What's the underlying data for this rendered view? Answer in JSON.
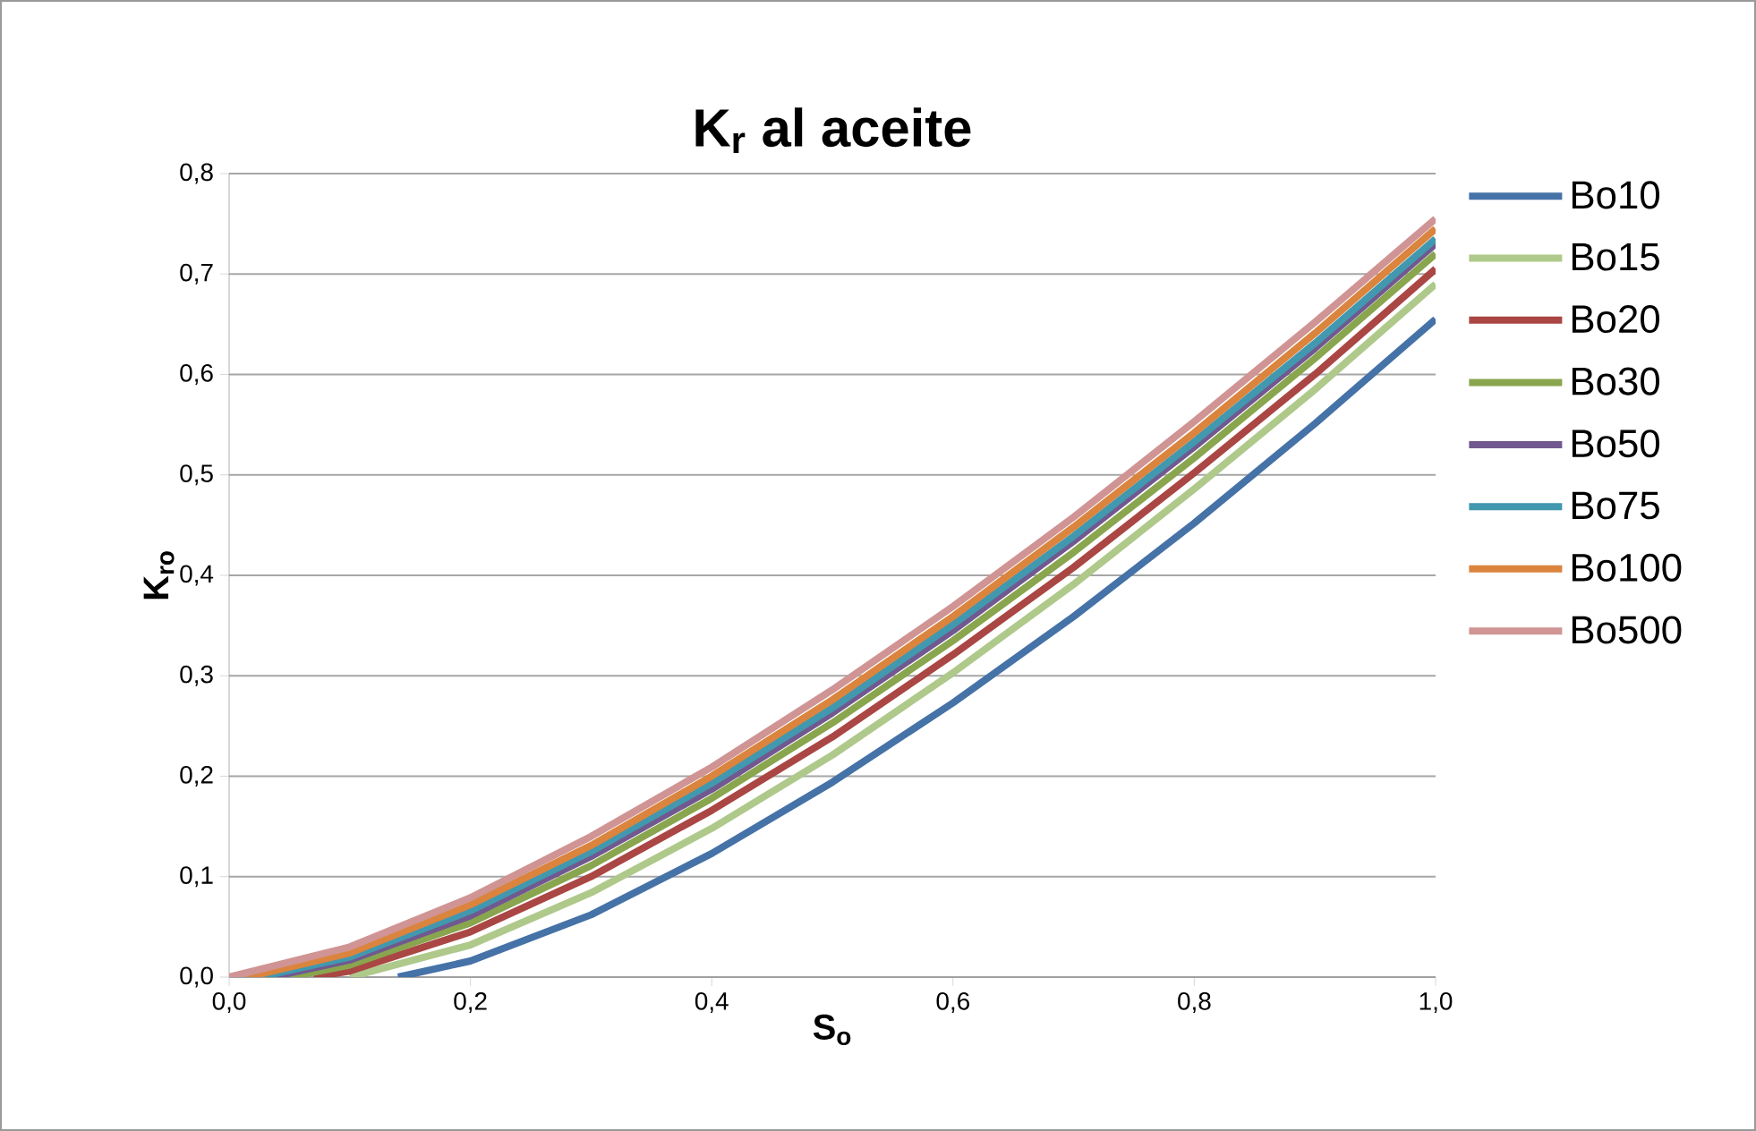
{
  "chart_data": {
    "type": "line",
    "title": "K$_{r}$ al aceite",
    "xlabel": "S$_{o}$",
    "ylabel": "K$_{ro}$",
    "xlim": [
      0,
      1
    ],
    "ylim": [
      0,
      0.8
    ],
    "xticks": [
      {
        "value": 0,
        "label": "0,0"
      },
      {
        "value": 0.2,
        "label": "0,2"
      },
      {
        "value": 0.4,
        "label": "0,4"
      },
      {
        "value": 0.6,
        "label": "0,6"
      },
      {
        "value": 0.8,
        "label": "0,8"
      },
      {
        "value": 1,
        "label": "1,0"
      }
    ],
    "yticks": [
      {
        "value": 0,
        "label": "0,0"
      },
      {
        "value": 0.1,
        "label": "0,1"
      },
      {
        "value": 0.2,
        "label": "0,2"
      },
      {
        "value": 0.3,
        "label": "0,3"
      },
      {
        "value": 0.4,
        "label": "0,4"
      },
      {
        "value": 0.5,
        "label": "0,5"
      },
      {
        "value": 0.6,
        "label": "0,6"
      },
      {
        "value": 0.7,
        "label": "0,7"
      },
      {
        "value": 0.8,
        "label": "0,8"
      }
    ],
    "grid": "y",
    "legend": "right",
    "marker": "none",
    "line_style": "solid",
    "series": [
      {
        "name": "Bo10",
        "color": "#4572a7",
        "x": [
          0.14,
          0.2,
          0.3,
          0.4,
          0.5,
          0.6,
          0.7,
          0.8,
          0.9,
          1.0
        ],
        "values": [
          0,
          0.016,
          0.062,
          0.123,
          0.194,
          0.273,
          0.359,
          0.452,
          0.551,
          0.655
        ]
      },
      {
        "name": "Bo15",
        "color": "#aec98a",
        "x": [
          0.1,
          0.2,
          0.3,
          0.4,
          0.5,
          0.6,
          0.7,
          0.8,
          0.9,
          1.0
        ],
        "values": [
          0,
          0.032,
          0.084,
          0.148,
          0.221,
          0.303,
          0.391,
          0.486,
          0.585,
          0.69
        ]
      },
      {
        "name": "Bo20",
        "color": "#aa4643",
        "x": [
          0.07,
          0.1,
          0.2,
          0.3,
          0.4,
          0.5,
          0.6,
          0.7,
          0.8,
          0.9,
          1.0
        ],
        "values": [
          0,
          0.006,
          0.045,
          0.1,
          0.166,
          0.239,
          0.321,
          0.408,
          0.502,
          0.6,
          0.705
        ]
      },
      {
        "name": "Bo30",
        "color": "#89a54e",
        "x": [
          0.05,
          0.1,
          0.2,
          0.3,
          0.4,
          0.5,
          0.6,
          0.7,
          0.8,
          0.9,
          1.0
        ],
        "values": [
          0,
          0.012,
          0.054,
          0.111,
          0.178,
          0.253,
          0.335,
          0.423,
          0.517,
          0.616,
          0.72
        ]
      },
      {
        "name": "Bo50",
        "color": "#71588f",
        "x": [
          0.035,
          0.1,
          0.2,
          0.3,
          0.4,
          0.5,
          0.6,
          0.7,
          0.8,
          0.9,
          1.0
        ],
        "values": [
          0,
          0.017,
          0.061,
          0.12,
          0.187,
          0.263,
          0.345,
          0.434,
          0.528,
          0.626,
          0.73
        ]
      },
      {
        "name": "Bo75",
        "color": "#4198af",
        "x": [
          0.025,
          0.1,
          0.2,
          0.3,
          0.4,
          0.5,
          0.6,
          0.7,
          0.8,
          0.9,
          1.0
        ],
        "values": [
          0,
          0.02,
          0.066,
          0.125,
          0.193,
          0.268,
          0.351,
          0.439,
          0.533,
          0.631,
          0.735
        ]
      },
      {
        "name": "Bo100",
        "color": "#db843d",
        "x": [
          0.015,
          0.1,
          0.2,
          0.3,
          0.4,
          0.5,
          0.6,
          0.7,
          0.8,
          0.9,
          1.0
        ],
        "values": [
          0,
          0.024,
          0.072,
          0.131,
          0.2,
          0.276,
          0.359,
          0.448,
          0.542,
          0.641,
          0.745
        ]
      },
      {
        "name": "Bo500",
        "color": "#d09494",
        "x": [
          0,
          0.1,
          0.2,
          0.3,
          0.4,
          0.5,
          0.6,
          0.7,
          0.8,
          0.9,
          1.0
        ],
        "values": [
          0,
          0.03,
          0.079,
          0.14,
          0.209,
          0.286,
          0.369,
          0.458,
          0.553,
          0.652,
          0.755
        ]
      }
    ]
  }
}
